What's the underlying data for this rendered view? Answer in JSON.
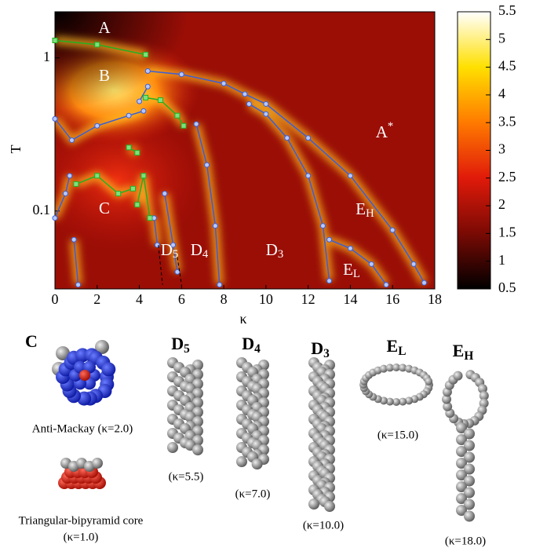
{
  "chart_data": {
    "type": "heatmap",
    "x_label": "κ",
    "y_label": "T",
    "xlim": [
      0,
      18
    ],
    "xticks": [
      0,
      2,
      4,
      6,
      8,
      10,
      12,
      14,
      16,
      18
    ],
    "ylim": [
      0.031,
      2.0
    ],
    "yticks": [
      0.1,
      1
    ],
    "y_log": true,
    "colorbar": {
      "lim": [
        0.5,
        5.5
      ],
      "ticks": [
        0.5,
        1,
        1.5,
        2,
        2.5,
        3,
        3.5,
        4,
        4.5,
        5,
        5.5
      ]
    },
    "series": [
      {
        "color": "#3a5fd8",
        "marker": "circle",
        "x": [
          4.4,
          6,
          8,
          9,
          10,
          12,
          14,
          16,
          17,
          17.5
        ],
        "y": [
          0.82,
          0.78,
          0.68,
          0.58,
          0.5,
          0.3,
          0.17,
          0.075,
          0.045,
          0.034
        ]
      },
      {
        "color": "#3a5fd8",
        "marker": "circle",
        "x": [
          9.2,
          10,
          11,
          12,
          12.7,
          13
        ],
        "y": [
          0.5,
          0.43,
          0.3,
          0.17,
          0.08,
          0.035
        ]
      },
      {
        "color": "#3a5fd8",
        "marker": "circle",
        "x": [
          0,
          0.8,
          2,
          3.5,
          4.2
        ],
        "y": [
          0.4,
          0.29,
          0.36,
          0.42,
          0.45
        ]
      },
      {
        "color": "#3a5fd8",
        "marker": "circle",
        "x": [
          4,
          4.4
        ],
        "y": [
          0.52,
          0.65
        ]
      },
      {
        "color": "#3a5fd8",
        "marker": "circle",
        "x": [
          0,
          0.5,
          0.7
        ],
        "y": [
          0.09,
          0.13,
          0.17
        ]
      },
      {
        "color": "#3a5fd8",
        "marker": "circle",
        "x": [
          0.9,
          1.1
        ],
        "y": [
          0.065,
          0.033
        ]
      },
      {
        "color": "#3a5fd8",
        "marker": "circle",
        "x": [
          6.7,
          7.2,
          7.6,
          7.8
        ],
        "y": [
          0.37,
          0.2,
          0.08,
          0.033
        ]
      },
      {
        "color": "#3a5fd8",
        "marker": "circle",
        "x": [
          5.2,
          5.6,
          5.8
        ],
        "y": [
          0.13,
          0.06,
          0.04
        ]
      },
      {
        "color": "#3a5fd8",
        "marker": "circle",
        "x": [
          4.7,
          4.85
        ],
        "y": [
          0.09,
          0.06
        ]
      },
      {
        "color": "#3a5fd8",
        "marker": "circle",
        "x": [
          13,
          14,
          15,
          15.7
        ],
        "y": [
          0.065,
          0.057,
          0.045,
          0.033
        ]
      },
      {
        "color": "#22b022",
        "marker": "square",
        "x": [
          0,
          2,
          4.3
        ],
        "y": [
          1.3,
          1.22,
          1.05
        ]
      },
      {
        "color": "#22b022",
        "marker": "square",
        "x": [
          4.3,
          5,
          5.8,
          6.1
        ],
        "y": [
          0.55,
          0.53,
          0.42,
          0.36
        ]
      },
      {
        "color": "#22b022",
        "marker": "square",
        "x": [
          3.5,
          3.9
        ],
        "y": [
          0.26,
          0.24
        ]
      },
      {
        "color": "#22b022",
        "marker": "square",
        "x": [
          1,
          2,
          3,
          3.7
        ],
        "y": [
          0.15,
          0.17,
          0.13,
          0.14
        ]
      },
      {
        "color": "#22b022",
        "marker": "square",
        "x": [
          3.9,
          4.2,
          4.5
        ],
        "y": [
          0.11,
          0.17,
          0.09
        ]
      },
      {
        "color": "#000000",
        "marker": "dashed",
        "x": [
          4.9,
          5.1
        ],
        "y": [
          0.06,
          0.033
        ]
      },
      {
        "color": "#000000",
        "marker": "dashed",
        "x": [
          5.8,
          6
        ],
        "y": [
          0.05,
          0.033
        ]
      }
    ],
    "region_labels": [
      {
        "text": "A"
      },
      {
        "text": "B"
      },
      {
        "text": "C"
      },
      {
        "text": "A",
        "sup": "*"
      },
      {
        "text": "E",
        "sub": "H"
      },
      {
        "text": "E",
        "sub": "L"
      },
      {
        "text": "D",
        "sub": "5"
      },
      {
        "text": "D",
        "sub": "4"
      },
      {
        "text": "D",
        "sub": "3"
      }
    ]
  },
  "panels": {
    "titles": [
      {
        "text": "C"
      },
      {
        "text": "D",
        "sub": "5"
      },
      {
        "text": "D",
        "sub": "4"
      },
      {
        "text": "D",
        "sub": "3"
      },
      {
        "text": "E",
        "sub": "L"
      },
      {
        "text": "E",
        "sub": "H"
      }
    ],
    "captions": [
      "Anti-Mackay (κ=2.0)",
      "(κ=5.5)",
      "(κ=7.0)",
      "(κ=10.0)",
      "(κ=15.0)",
      "(κ=18.0)",
      "Triangular-bipyramid core",
      "(κ=1.0)"
    ]
  }
}
